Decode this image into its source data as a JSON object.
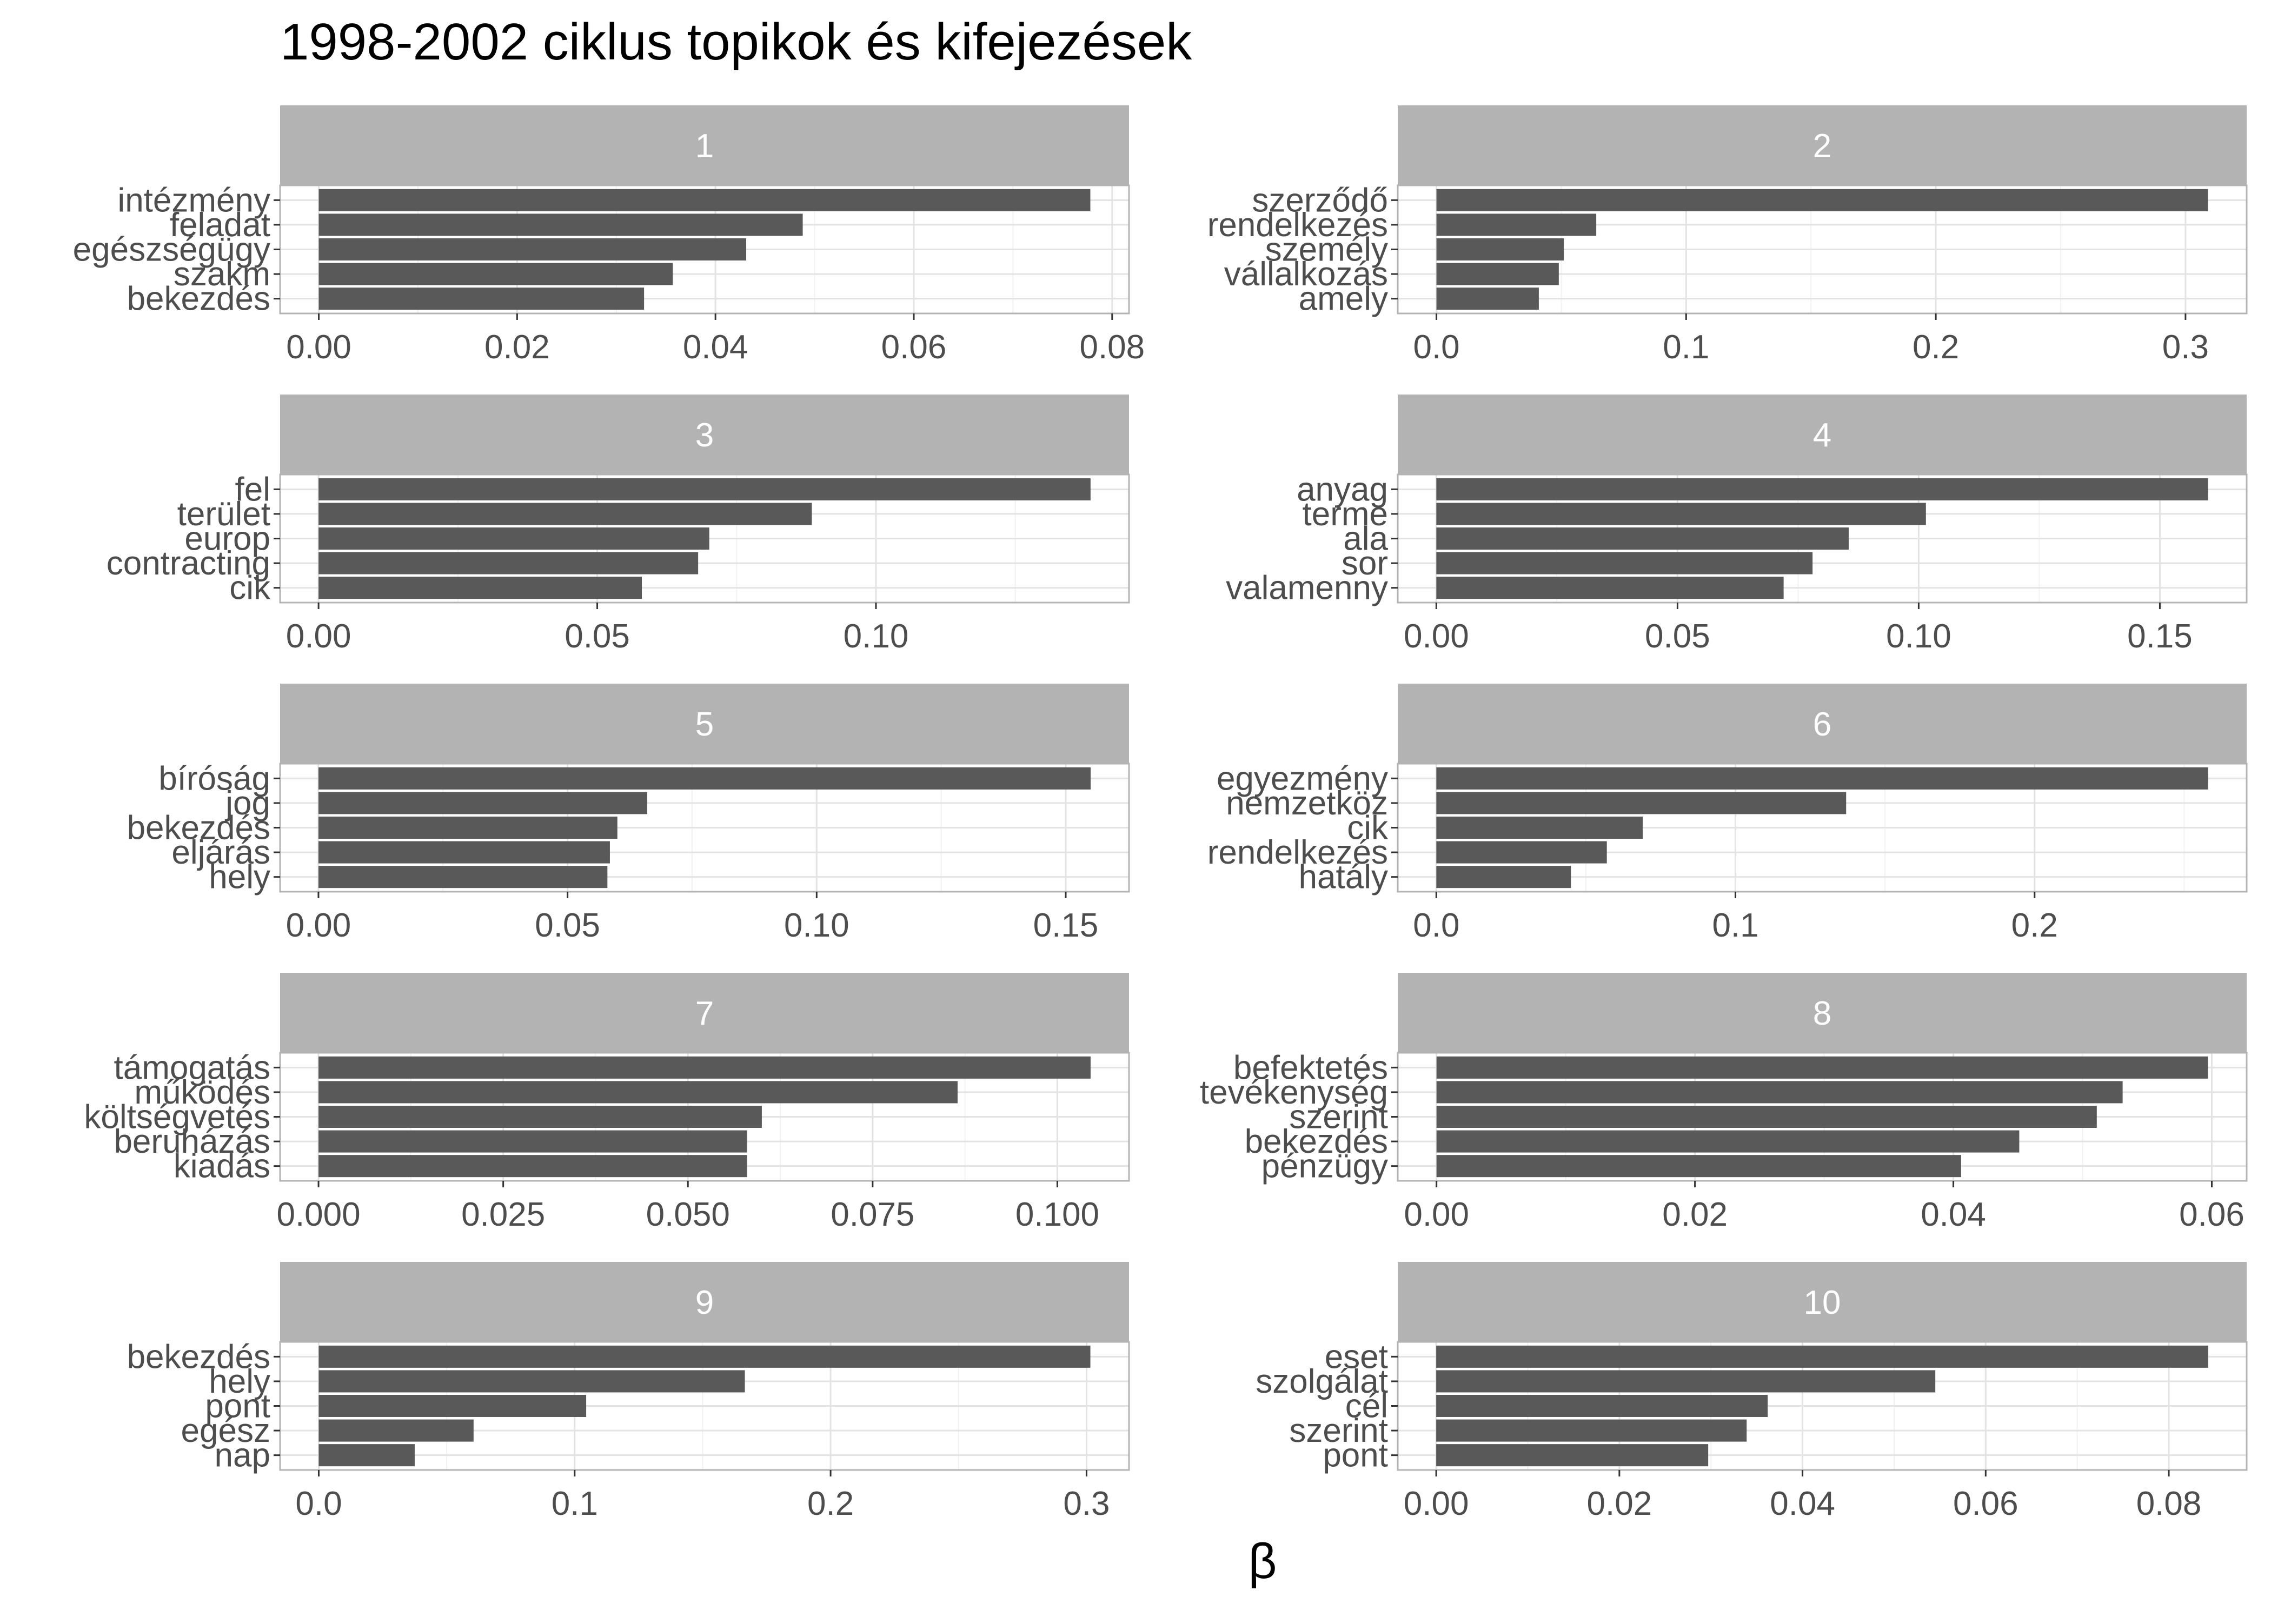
{
  "chart_data": {
    "type": "bar",
    "title": "1998-2002 ciklus topikok és kifejezések",
    "xlabel": "β",
    "ylabel": "",
    "orientation": "horizontal",
    "grid": true,
    "colors": {
      "bar": "#595959",
      "strip": "#b3b3b3",
      "strip_text": "#ffffff",
      "panel_border": "#b3b3b3",
      "grid_major": "#e3e3e3",
      "grid_minor": "#f2f2f2",
      "axis_text": "#4d4d4d",
      "title": "#000000"
    },
    "panels": [
      {
        "label": "1",
        "categories": [
          "intézmény",
          "feladat",
          "egészségügy",
          "szakm",
          "bekezdés"
        ],
        "values": [
          0.0778,
          0.0488,
          0.0431,
          0.0357,
          0.0328
        ],
        "xlim": [
          -0.0039,
          0.0817
        ],
        "ticks": [
          0.0,
          0.02,
          0.04,
          0.06,
          0.08
        ],
        "tick_labels": [
          "0.00",
          "0.02",
          "0.04",
          "0.06",
          "0.08"
        ]
      },
      {
        "label": "2",
        "categories": [
          "szerződő",
          "rendelkezés",
          "személy",
          "vállalkozás",
          "amely"
        ],
        "values": [
          0.309,
          0.064,
          0.051,
          0.049,
          0.041
        ],
        "xlim": [
          -0.0155,
          0.3245
        ],
        "ticks": [
          0.0,
          0.1,
          0.2,
          0.3
        ],
        "tick_labels": [
          "0.0",
          "0.1",
          "0.2",
          "0.3"
        ]
      },
      {
        "label": "3",
        "categories": [
          "fel",
          "terület",
          "europ",
          "contracting",
          "cik"
        ],
        "values": [
          0.1385,
          0.0885,
          0.0701,
          0.0681,
          0.058
        ],
        "xlim": [
          -0.0069,
          0.1454
        ],
        "ticks": [
          0.0,
          0.05,
          0.1
        ],
        "tick_labels": [
          "0.00",
          "0.05",
          "0.10"
        ]
      },
      {
        "label": "4",
        "categories": [
          "anyag",
          "terme",
          "ala",
          "sor",
          "valamenny"
        ],
        "values": [
          0.16,
          0.1015,
          0.0855,
          0.078,
          0.072
        ],
        "xlim": [
          -0.008,
          0.168
        ],
        "ticks": [
          0.0,
          0.05,
          0.1,
          0.15
        ],
        "tick_labels": [
          "0.00",
          "0.05",
          "0.10",
          "0.15"
        ]
      },
      {
        "label": "5",
        "categories": [
          "bíróság",
          "jog",
          "bekezdés",
          "eljárás",
          "hely"
        ],
        "values": [
          0.155,
          0.066,
          0.06,
          0.0585,
          0.058
        ],
        "xlim": [
          -0.0077,
          0.1627
        ],
        "ticks": [
          0.0,
          0.05,
          0.1,
          0.15
        ],
        "tick_labels": [
          "0.00",
          "0.05",
          "0.10",
          "0.15"
        ]
      },
      {
        "label": "6",
        "categories": [
          "egyezmény",
          "nemzetköz",
          "cik",
          "rendelkezés",
          "hatály"
        ],
        "values": [
          0.258,
          0.137,
          0.069,
          0.057,
          0.045
        ],
        "xlim": [
          -0.0129,
          0.2709
        ],
        "ticks": [
          0.0,
          0.1,
          0.2
        ],
        "tick_labels": [
          "0.0",
          "0.1",
          "0.2"
        ]
      },
      {
        "label": "7",
        "categories": [
          "támogatás",
          "működés",
          "költségvetés",
          "beruházás",
          "kiadás"
        ],
        "values": [
          0.1045,
          0.0865,
          0.06,
          0.058,
          0.058
        ],
        "xlim": [
          -0.0052,
          0.1097
        ],
        "ticks": [
          0.0,
          0.025,
          0.05,
          0.075,
          0.1
        ],
        "tick_labels": [
          "0.000",
          "0.025",
          "0.050",
          "0.075",
          "0.100"
        ]
      },
      {
        "label": "8",
        "categories": [
          "befektetés",
          "tevékenység",
          "szerint",
          "bekezdés",
          "pénzügy"
        ],
        "values": [
          0.0597,
          0.0531,
          0.0511,
          0.0451,
          0.0406
        ],
        "xlim": [
          -0.003,
          0.0627
        ],
        "ticks": [
          0.0,
          0.02,
          0.04,
          0.06
        ],
        "tick_labels": [
          "0.00",
          "0.02",
          "0.04",
          "0.06"
        ]
      },
      {
        "label": "9",
        "categories": [
          "bekezdés",
          "hely",
          "pont",
          "egész",
          "nap"
        ],
        "values": [
          0.3015,
          0.1665,
          0.1045,
          0.0605,
          0.0375
        ],
        "xlim": [
          -0.0151,
          0.3166
        ],
        "ticks": [
          0.0,
          0.1,
          0.2,
          0.3
        ],
        "tick_labels": [
          "0.0",
          "0.1",
          "0.2",
          "0.3"
        ]
      },
      {
        "label": "10",
        "categories": [
          "eset",
          "szolgálat",
          "cél",
          "szerint",
          "pont"
        ],
        "values": [
          0.0843,
          0.0545,
          0.0362,
          0.0339,
          0.0297
        ],
        "xlim": [
          -0.0042,
          0.0885
        ],
        "ticks": [
          0.0,
          0.02,
          0.04,
          0.06,
          0.08
        ],
        "tick_labels": [
          "0.00",
          "0.02",
          "0.04",
          "0.06",
          "0.08"
        ]
      }
    ]
  }
}
